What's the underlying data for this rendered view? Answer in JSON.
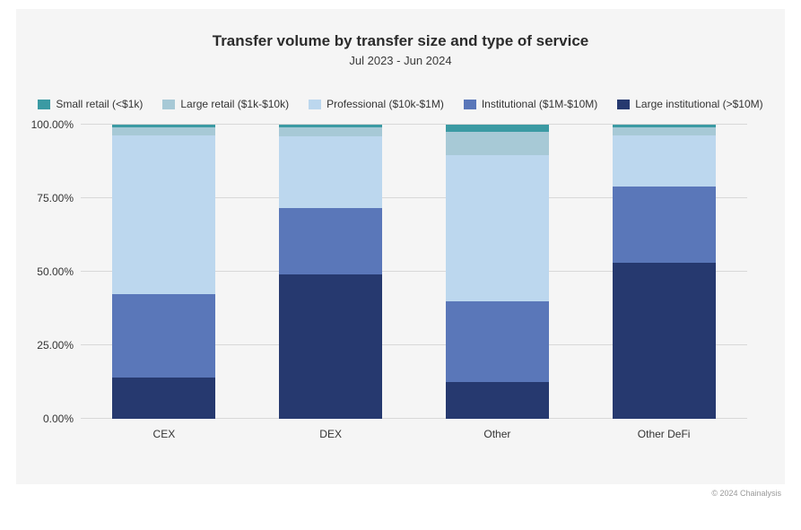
{
  "title": "Transfer volume by transfer size and type of service",
  "subtitle": "Jul 2023 - Jun 2024",
  "title_fontsize": 17,
  "subtitle_fontsize": 13,
  "legend_fontsize": 12,
  "tick_fontsize": 12,
  "credit": "© 2024 Chainalysis",
  "background_color": "#f5f5f5",
  "grid_color": "#d8d8d8",
  "y_axis": {
    "min": 0,
    "max": 100,
    "step": 25,
    "format_suffix": "%",
    "decimals": 2,
    "ticks": [
      0,
      25,
      50,
      75,
      100
    ]
  },
  "series": [
    {
      "key": "small_retail",
      "label": "Small retail (<$1k)",
      "color": "#3b9aa3"
    },
    {
      "key": "large_retail",
      "label": "Large retail ($1k-$10k)",
      "color": "#a7c9d6"
    },
    {
      "key": "professional",
      "label": "Professional ($10k-$1M)",
      "color": "#bcd7ee"
    },
    {
      "key": "institutional",
      "label": "Institutional ($1M-$10M)",
      "color": "#5a77b9"
    },
    {
      "key": "large_institutional",
      "label": "Large institutional (>$10M)",
      "color": "#26396f"
    }
  ],
  "categories": [
    "CEX",
    "DEX",
    "Other",
    "Other DeFi"
  ],
  "chart": {
    "type": "stacked_bar_100",
    "bar_width_ratio": 0.62,
    "data": {
      "CEX": {
        "small_retail": 1.0,
        "large_retail": 2.5,
        "professional": 54.0,
        "institutional": 28.5,
        "large_institutional": 14.0
      },
      "DEX": {
        "small_retail": 1.0,
        "large_retail": 3.0,
        "professional": 24.5,
        "institutional": 22.5,
        "large_institutional": 49.0
      },
      "Other": {
        "small_retail": 2.5,
        "large_retail": 8.0,
        "professional": 49.5,
        "institutional": 27.5,
        "large_institutional": 12.5
      },
      "Other DeFi": {
        "small_retail": 1.0,
        "large_retail": 2.5,
        "professional": 17.5,
        "institutional": 26.0,
        "large_institutional": 53.0
      }
    }
  }
}
